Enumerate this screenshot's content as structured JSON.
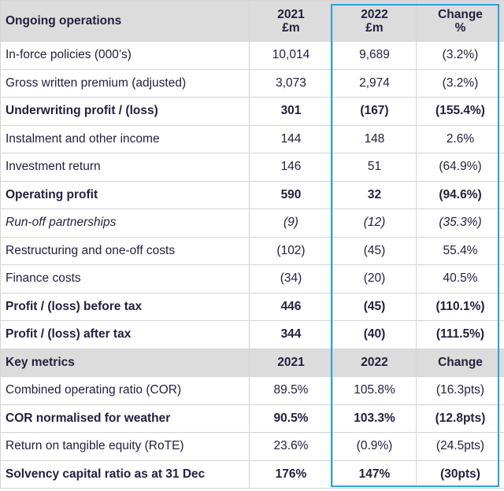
{
  "section1": {
    "title": "Ongoing operations",
    "col2021": [
      "2021",
      "£m"
    ],
    "col2022": [
      "2022",
      "£m"
    ],
    "colChange": [
      "Change",
      "%"
    ]
  },
  "rows1": [
    {
      "label": "In-force policies (000’s)",
      "v2021": "10,014",
      "v2022": "9,689",
      "change": "(3.2%)",
      "style": "normal"
    },
    {
      "label": "Gross written premium (adjusted)",
      "v2021": "3,073",
      "v2022": "2,974",
      "change": "(3.2%)",
      "style": "normal"
    },
    {
      "label": "Underwriting profit / (loss)",
      "v2021": "301",
      "v2022": "(167)",
      "change": "(155.4%)",
      "style": "bold"
    },
    {
      "label": "Instalment and other income",
      "v2021": "144",
      "v2022": "148",
      "change": "2.6%",
      "style": "normal"
    },
    {
      "label": "Investment return",
      "v2021": "146",
      "v2022": "51",
      "change": "(64.9%)",
      "style": "normal"
    },
    {
      "label": "Operating profit",
      "v2021": "590",
      "v2022": "32",
      "change": "(94.6%)",
      "style": "bold"
    },
    {
      "label": "Run-off partnerships",
      "v2021": "(9)",
      "v2022": "(12)",
      "change": "(35.3%)",
      "style": "italic"
    },
    {
      "label": "Restructuring and one-off costs",
      "v2021": "(102)",
      "v2022": "(45)",
      "change": "55.4%",
      "style": "normal"
    },
    {
      "label": "Finance costs",
      "v2021": "(34)",
      "v2022": "(20)",
      "change": "40.5%",
      "style": "normal"
    },
    {
      "label": "Profit / (loss) before tax",
      "v2021": "446",
      "v2022": "(45)",
      "change": "(110.1%)",
      "style": "bold"
    },
    {
      "label": "Profit / (loss) after tax",
      "v2021": "344",
      "v2022": "(40)",
      "change": "(111.5%)",
      "style": "bold"
    }
  ],
  "section2": {
    "title": "Key metrics",
    "col2021": "2021",
    "col2022": "2022",
    "colChange": "Change"
  },
  "rows2": [
    {
      "label": "Combined operating ratio (COR)",
      "v2021": "89.5%",
      "v2022": "105.8%",
      "change": "(16.3pts)",
      "style": "normal"
    },
    {
      "label": "COR normalised for weather",
      "v2021": "90.5%",
      "v2022": "103.3%",
      "change": "(12.8pts)",
      "style": "bold"
    },
    {
      "label": "Return on tangible equity (RoTE)",
      "v2021": "23.6%",
      "v2022": "(0.9%)",
      "change": "(24.5pts)",
      "style": "normal"
    },
    {
      "label": "Solvency capital ratio as at 31 Dec",
      "v2021": "176%",
      "v2022": "147%",
      "change": "(30pts)",
      "style": "bold"
    }
  ],
  "colors": {
    "header_bg": "#dcdcdc",
    "highlight_border": "#2aa3d8",
    "text": "#23213f",
    "grid": "#d4d4d4"
  }
}
